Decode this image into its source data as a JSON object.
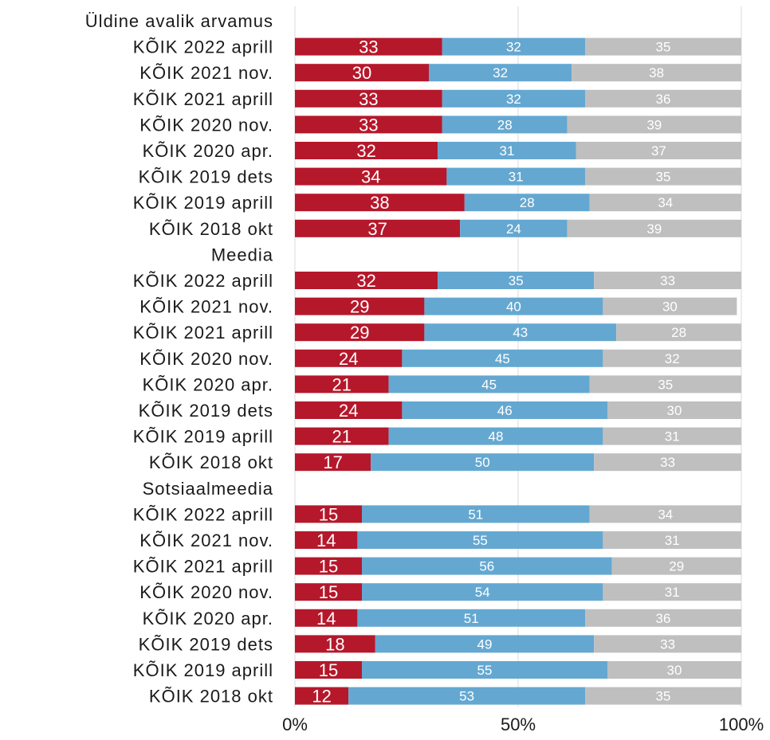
{
  "chart_data": {
    "type": "bar",
    "orientation": "horizontal",
    "stacked": true,
    "percent_stacked": true,
    "xlim": [
      0,
      100
    ],
    "x_ticks": [
      "0%",
      "50%",
      "100%"
    ],
    "grid": true,
    "colors": [
      "#b5182b",
      "#64a8d1",
      "#bfbfbf"
    ],
    "rows": [
      {
        "label": "Üldine avalik arvamus",
        "header": true
      },
      {
        "label": "KÕIK 2022 aprill",
        "values": [
          33,
          32,
          35
        ]
      },
      {
        "label": "KÕIK 2021 nov.",
        "values": [
          30,
          32,
          38
        ]
      },
      {
        "label": "KÕIK 2021 aprill",
        "values": [
          33,
          32,
          36
        ]
      },
      {
        "label": "KÕIK 2020 nov.",
        "values": [
          33,
          28,
          39
        ]
      },
      {
        "label": "KÕIK 2020 apr.",
        "values": [
          32,
          31,
          37
        ]
      },
      {
        "label": "KÕIK 2019 dets",
        "values": [
          34,
          31,
          35
        ]
      },
      {
        "label": "KÕIK 2019 aprill",
        "values": [
          38,
          28,
          34
        ]
      },
      {
        "label": "KÕIK 2018 okt",
        "values": [
          37,
          24,
          39
        ]
      },
      {
        "label": "Meedia",
        "header": true
      },
      {
        "label": "KÕIK 2022 aprill",
        "values": [
          32,
          35,
          33
        ]
      },
      {
        "label": "KÕIK 2021 nov.",
        "values": [
          29,
          40,
          30
        ]
      },
      {
        "label": "KÕIK 2021 aprill",
        "values": [
          29,
          43,
          28
        ]
      },
      {
        "label": "KÕIK 2020 nov.",
        "values": [
          24,
          45,
          32
        ]
      },
      {
        "label": "KÕIK 2020 apr.",
        "values": [
          21,
          45,
          35
        ]
      },
      {
        "label": "KÕIK 2019 dets",
        "values": [
          24,
          46,
          30
        ]
      },
      {
        "label": "KÕIK 2019 aprill",
        "values": [
          21,
          48,
          31
        ]
      },
      {
        "label": "KÕIK 2018 okt",
        "values": [
          17,
          50,
          33
        ]
      },
      {
        "label": "Sotsiaalmeedia",
        "header": true
      },
      {
        "label": "KÕIK 2022 aprill",
        "values": [
          15,
          51,
          34
        ]
      },
      {
        "label": "KÕIK 2021 nov.",
        "values": [
          14,
          55,
          31
        ]
      },
      {
        "label": "KÕIK 2021 aprill",
        "values": [
          15,
          56,
          29
        ]
      },
      {
        "label": "KÕIK 2020 nov.",
        "values": [
          15,
          54,
          31
        ]
      },
      {
        "label": "KÕIK 2020 apr.",
        "values": [
          14,
          51,
          36
        ]
      },
      {
        "label": "KÕIK 2019 dets",
        "values": [
          18,
          49,
          33
        ]
      },
      {
        "label": "KÕIK 2019 aprill",
        "values": [
          15,
          55,
          30
        ]
      },
      {
        "label": "KÕIK 2018 okt",
        "values": [
          12,
          53,
          35
        ]
      }
    ]
  }
}
